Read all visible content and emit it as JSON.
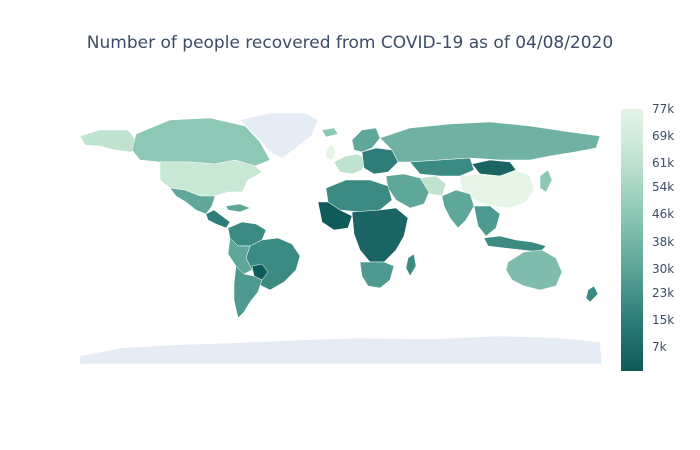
{
  "title": "Number of people recovered from COVID-19 as of 04/08/2020",
  "colorscale": {
    "min": 0,
    "max": 77000,
    "stops": [
      "#0f5a5a",
      "#2e7d78",
      "#5ea79a",
      "#8dc7b5",
      "#bfe3cf",
      "#e6f5e6"
    ],
    "tick_labels": [
      "77k",
      "69k",
      "61k",
      "54k",
      "46k",
      "38k",
      "30k",
      "23k",
      "15k",
      "7k"
    ],
    "tick_values": [
      77000,
      69000,
      61000,
      54000,
      46000,
      38000,
      30000,
      23000,
      15000,
      7000
    ]
  },
  "land_color": "#e5ecf6",
  "border_color": "#ffffff"
}
